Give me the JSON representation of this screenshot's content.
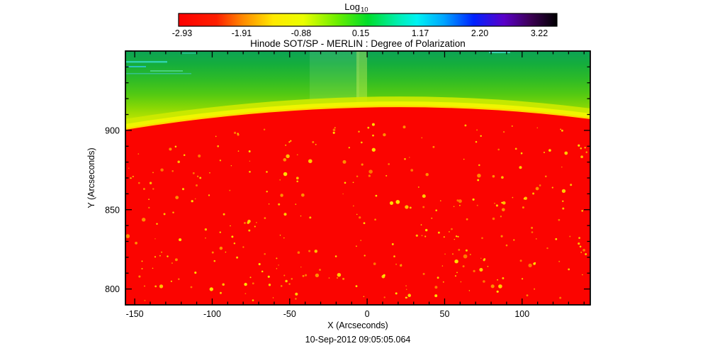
{
  "chart_data": {
    "type": "heatmap",
    "title": "Hinode SOT/SP - MERLIN : Degree of Polarization",
    "xlabel": "X (Arcseconds)",
    "ylabel": "Y (Arcseconds)",
    "timestamp": "10-Sep-2012 09:05:05.064",
    "xlim": [
      -156,
      144
    ],
    "ylim": [
      790,
      950
    ],
    "x_ticks": [
      -150,
      -100,
      -50,
      0,
      50,
      100
    ],
    "y_ticks": [
      900,
      850,
      800
    ],
    "grid": false,
    "colorbar": {
      "label_main": "Log",
      "label_sub": "10",
      "ticks": [
        "-2.93",
        "-1.91",
        "-0.88",
        "0.15",
        "1.17",
        "2.20",
        "3.22"
      ],
      "range": [
        -2.93,
        3.22
      ],
      "position": "top",
      "palette": [
        "#ff0000",
        "#ff8800",
        "#ffee00",
        "#aaff00",
        "#00dd2a",
        "#00f2f2",
        "#0066ff",
        "#0000ff",
        "#5a00c8",
        "#3c0054",
        "#000000"
      ]
    },
    "regions": {
      "solar_disk": "Below the solar limb arc (limb near y=903 arcsec at plot edges rising to about y=917 arcsec near x=10 arcsec): saturated red, log10 degree of polarization near -2.9, with sparse small yellow-orange speckles of higher polarization",
      "limb_band": "Thin bright yellow transition band hugging the limb arc, log10 near -0.9",
      "off_limb": "Above the limb: green field brightening from darker green at the top of the frame toward yellow-green at the limb, log10 roughly 0 to 0.5; faint cyan streak artifacts in the upper-left corner and lighter vertical column artifacts near x=-35 to -5 arcsec"
    }
  }
}
